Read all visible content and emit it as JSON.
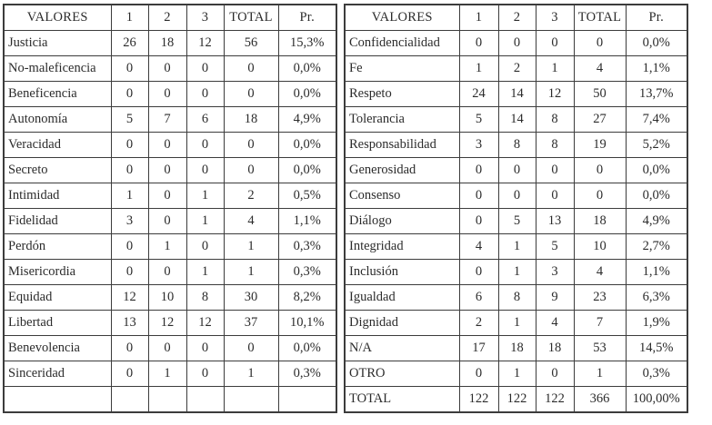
{
  "colors": {
    "border": "#3c3c3c",
    "text": "#2b2b2b",
    "background": "#ffffff"
  },
  "tables": {
    "left": {
      "columns": [
        "VALORES",
        "1",
        "2",
        "3",
        "TOTAL",
        "Pr."
      ],
      "rows": [
        [
          "Justicia",
          "26",
          "18",
          "12",
          "56",
          "15,3%"
        ],
        [
          "No-maleficencia",
          "0",
          "0",
          "0",
          "0",
          "0,0%"
        ],
        [
          "Beneficencia",
          "0",
          "0",
          "0",
          "0",
          "0,0%"
        ],
        [
          "Autonomía",
          "5",
          "7",
          "6",
          "18",
          "4,9%"
        ],
        [
          "Veracidad",
          "0",
          "0",
          "0",
          "0",
          "0,0%"
        ],
        [
          "Secreto",
          "0",
          "0",
          "0",
          "0",
          "0,0%"
        ],
        [
          "Intimidad",
          "1",
          "0",
          "1",
          "2",
          "0,5%"
        ],
        [
          "Fidelidad",
          "3",
          "0",
          "1",
          "4",
          "1,1%"
        ],
        [
          "Perdón",
          "0",
          "1",
          "0",
          "1",
          "0,3%"
        ],
        [
          "Misericordia",
          "0",
          "0",
          "1",
          "1",
          "0,3%"
        ],
        [
          "Equidad",
          "12",
          "10",
          "8",
          "30",
          "8,2%"
        ],
        [
          "Libertad",
          "13",
          "12",
          "12",
          "37",
          "10,1%"
        ],
        [
          "Benevolencia",
          "0",
          "0",
          "0",
          "0",
          "0,0%"
        ],
        [
          "Sinceridad",
          "0",
          "1",
          "0",
          "1",
          "0,3%"
        ],
        [
          "",
          "",
          "",
          "",
          "",
          ""
        ]
      ]
    },
    "right": {
      "columns": [
        "VALORES",
        "1",
        "2",
        "3",
        "TOTAL",
        "Pr."
      ],
      "rows": [
        [
          "Confidencialidad",
          "0",
          "0",
          "0",
          "0",
          "0,0%"
        ],
        [
          "Fe",
          "1",
          "2",
          "1",
          "4",
          "1,1%"
        ],
        [
          "Respeto",
          "24",
          "14",
          "12",
          "50",
          "13,7%"
        ],
        [
          "Tolerancia",
          "5",
          "14",
          "8",
          "27",
          "7,4%"
        ],
        [
          "Responsabilidad",
          "3",
          "8",
          "8",
          "19",
          "5,2%"
        ],
        [
          "Generosidad",
          "0",
          "0",
          "0",
          "0",
          "0,0%"
        ],
        [
          "Consenso",
          "0",
          "0",
          "0",
          "0",
          "0,0%"
        ],
        [
          "Diálogo",
          "0",
          "5",
          "13",
          "18",
          "4,9%"
        ],
        [
          "Integridad",
          "4",
          "1",
          "5",
          "10",
          "2,7%"
        ],
        [
          "Inclusión",
          "0",
          "1",
          "3",
          "4",
          "1,1%"
        ],
        [
          "Igualdad",
          "6",
          "8",
          "9",
          "23",
          "6,3%"
        ],
        [
          "Dignidad",
          "2",
          "1",
          "4",
          "7",
          "1,9%"
        ],
        [
          "N/A",
          "17",
          "18",
          "18",
          "53",
          "14,5%"
        ],
        [
          "OTRO",
          "0",
          "1",
          "0",
          "1",
          "0,3%"
        ],
        [
          "TOTAL",
          "122",
          "122",
          "122",
          "366",
          "100,00%"
        ]
      ]
    }
  }
}
